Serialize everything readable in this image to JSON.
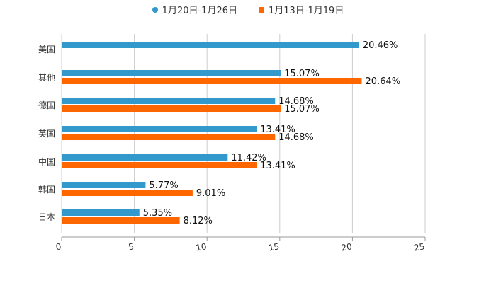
{
  "chart_data": {
    "type": "bar",
    "orientation": "horizontal",
    "categories": [
      "美国",
      "其他",
      "德国",
      "英国",
      "中国",
      "韩国",
      "日本"
    ],
    "series": [
      {
        "name": "1月20日-1月26日",
        "color": "#3399cc",
        "values": [
          20.46,
          15.07,
          14.68,
          13.41,
          11.42,
          5.77,
          5.35
        ]
      },
      {
        "name": "1月13日-1月19日",
        "color": "#ff6600",
        "values": [
          null,
          20.64,
          15.07,
          14.68,
          13.41,
          9.01,
          8.12
        ]
      }
    ],
    "value_suffix": "%",
    "xlim": [
      0,
      25
    ],
    "xticks": [
      "0",
      "5",
      "10",
      "15",
      "20",
      "25"
    ],
    "grid": true,
    "legend": "top-center"
  }
}
